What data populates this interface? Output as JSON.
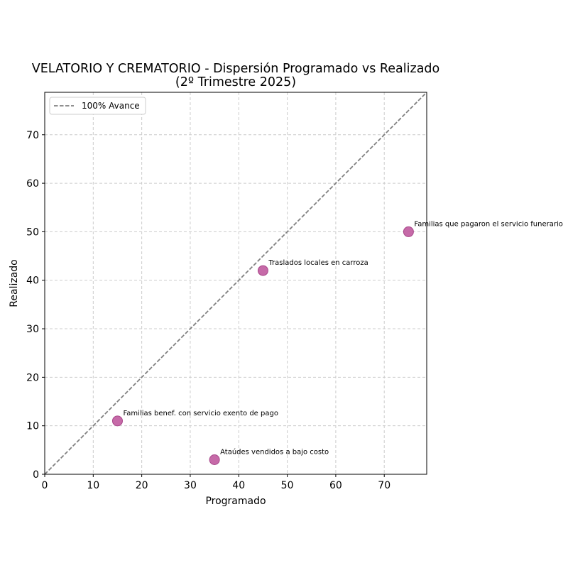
{
  "chart_data": {
    "type": "scatter",
    "title": "VELATORIO Y CREMATORIO - Dispersión Programado vs Realizado",
    "subtitle": "(2º Trimestre 2025)",
    "xlabel": "Programado",
    "ylabel": "Realizado",
    "xlim": [
      0,
      78.75
    ],
    "ylim": [
      0,
      78.75
    ],
    "xticks": [
      0,
      10,
      20,
      30,
      40,
      50,
      60,
      70
    ],
    "yticks": [
      0,
      10,
      20,
      30,
      40,
      50,
      60,
      70
    ],
    "grid": true,
    "legend": {
      "placement": "top-left",
      "entries": [
        "100% Avance"
      ]
    },
    "reference_line": {
      "label": "100% Avance",
      "slope": 1,
      "color": "#808080",
      "style": "dashed"
    },
    "point_color": "#c05a9e",
    "points": [
      {
        "x": 15,
        "y": 11,
        "label": "Familias benef. con servicio exento de pago"
      },
      {
        "x": 35,
        "y": 3,
        "label": "Ataúdes vendidos a bajo costo"
      },
      {
        "x": 45,
        "y": 42,
        "label": "Traslados locales en carroza"
      },
      {
        "x": 75,
        "y": 50,
        "label": "Familias que pagaron el servicio funerario"
      }
    ]
  }
}
